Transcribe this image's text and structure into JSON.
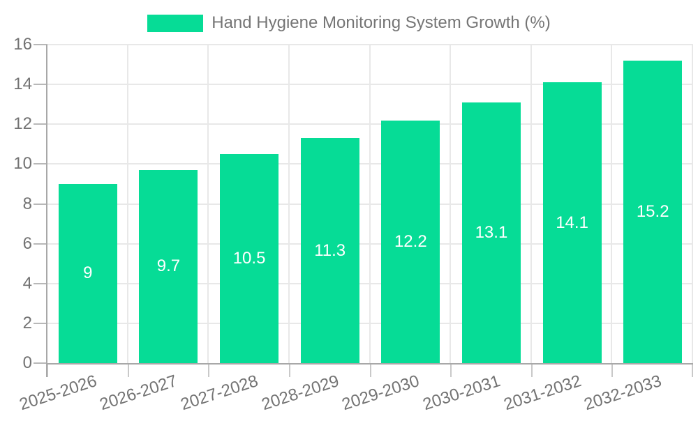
{
  "legend": {
    "label": "Hand Hygiene Monitoring System Growth (%)"
  },
  "chart_data": {
    "type": "bar",
    "title": "",
    "categories": [
      "2025-2026",
      "2026-2027",
      "2027-2028",
      "2028-2029",
      "2029-2030",
      "2030-2031",
      "2031-2032",
      "2032-2033"
    ],
    "series": [
      {
        "name": "Hand Hygiene Monitoring System Growth (%)",
        "values": [
          9,
          9.7,
          10.5,
          11.3,
          12.2,
          13.1,
          14.1,
          15.2
        ]
      }
    ],
    "bar_value_labels": [
      "9",
      "9.7",
      "10.5",
      "11.3",
      "12.2",
      "13.1",
      "14.1",
      "15.2"
    ],
    "xlabel": "",
    "ylabel": "",
    "ylim": [
      0,
      16
    ],
    "yticks": [
      0,
      2,
      4,
      6,
      8,
      10,
      12,
      14,
      16
    ],
    "grid": true,
    "legend_position": "top-center",
    "x_label_rotation_deg": -18,
    "colors": {
      "bar": "#06dc96",
      "bar_label": "#ffffff",
      "axis_text": "#737373",
      "axis_line": "#a8a8a8",
      "grid_line": "#e8e8e8",
      "background": "#ffffff"
    }
  }
}
